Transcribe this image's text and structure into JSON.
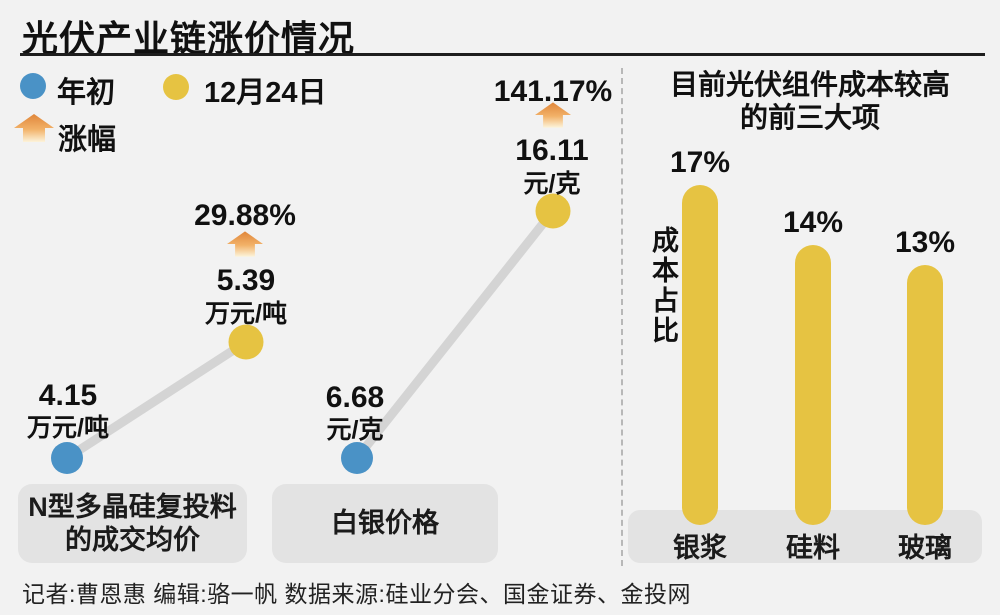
{
  "title": "光伏产业链涨价情况",
  "legend": {
    "start_label": "年初",
    "end_label": "12月24日",
    "change_label": "涨幅"
  },
  "colors": {
    "background": "#f2f2f2",
    "start_dot_blue": "#4a92c6",
    "end_dot_yellow": "#e6c342",
    "bar_yellow": "#e6c342",
    "connector_gray": "#d4d4d4",
    "label_box_gray": "#e3e3e3",
    "arrow_gradient_top": "#e0863a",
    "arrow_gradient_bottom": "#fcf3da"
  },
  "charts": {
    "polysilicon": {
      "start_value": "4.15",
      "start_unit": "万元/吨",
      "end_value": "5.39",
      "end_unit": "万元/吨",
      "change": "29.88%",
      "label_line1": "N型多晶硅复投料",
      "label_line2": "的成交均价"
    },
    "silver": {
      "start_value": "6.68",
      "start_unit": "元/克",
      "end_value": "16.11",
      "end_unit": "元/克",
      "change": "141.17%",
      "label": "白银价格"
    },
    "cost": {
      "title_line1": "目前光伏组件成本较高",
      "title_line2": "的前三大项",
      "ylabel": "成本占比",
      "bars": [
        {
          "label": "银浆",
          "value": 17,
          "value_label": "17%"
        },
        {
          "label": "硅料",
          "value": 14,
          "value_label": "14%"
        },
        {
          "label": "玻璃",
          "value": 13,
          "value_label": "13%"
        }
      ]
    }
  },
  "chart_data": [
    {
      "type": "line",
      "title": "N型多晶硅复投料的成交均价",
      "categories": [
        "年初",
        "12月24日"
      ],
      "values": [
        4.15,
        5.39
      ],
      "unit": "万元/吨",
      "change_pct": 29.88,
      "legend_position": "top-left",
      "grid": false
    },
    {
      "type": "line",
      "title": "白银价格",
      "categories": [
        "年初",
        "12月24日"
      ],
      "values": [
        6.68,
        16.11
      ],
      "unit": "元/克",
      "change_pct": 141.17,
      "grid": false
    },
    {
      "type": "bar",
      "title": "目前光伏组件成本较高的前三大项",
      "xlabel": "",
      "ylabel": "成本占比",
      "categories": [
        "银浆",
        "硅料",
        "玻璃"
      ],
      "values": [
        17,
        14,
        13
      ],
      "unit": "%",
      "ylim": [
        0,
        20
      ],
      "grid": false
    }
  ],
  "footer": "记者:曹恩惠  编辑:骆一帆  数据来源:硅业分会、国金证券、金投网"
}
